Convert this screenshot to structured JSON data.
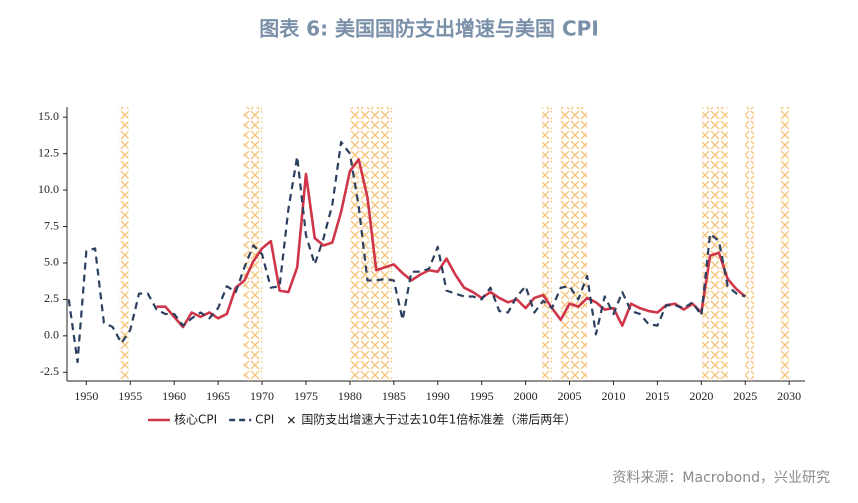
{
  "chart_data": {
    "type": "line",
    "title": "图表 6:    美国国防支出增速与美国 CPI",
    "source": "资料来源：Macrobond，兴业研究",
    "x": [
      1948,
      1949,
      1950,
      1951,
      1952,
      1953,
      1954,
      1955,
      1956,
      1957,
      1958,
      1959,
      1960,
      1961,
      1962,
      1963,
      1964,
      1965,
      1966,
      1967,
      1968,
      1969,
      1970,
      1971,
      1972,
      1973,
      1974,
      1975,
      1976,
      1977,
      1978,
      1979,
      1980,
      1981,
      1982,
      1983,
      1984,
      1985,
      1986,
      1987,
      1988,
      1989,
      1990,
      1991,
      1992,
      1993,
      1994,
      1995,
      1996,
      1997,
      1998,
      1999,
      2000,
      2001,
      2002,
      2003,
      2004,
      2005,
      2006,
      2007,
      2008,
      2009,
      2010,
      2011,
      2012,
      2013,
      2014,
      2015,
      2016,
      2017,
      2018,
      2019,
      2020,
      2021,
      2022,
      2023,
      2024,
      2025
    ],
    "series": [
      {
        "name": "核心CPI",
        "color": "#d0364a",
        "dash": false,
        "values": [
          null,
          null,
          null,
          null,
          null,
          null,
          null,
          null,
          null,
          null,
          2.0,
          2.0,
          1.3,
          0.6,
          1.6,
          1.3,
          1.6,
          1.2,
          1.5,
          3.3,
          3.8,
          5.1,
          6.0,
          6.5,
          3.1,
          3.0,
          4.7,
          11.1,
          6.7,
          6.2,
          6.4,
          8.5,
          11.3,
          12.1,
          9.5,
          4.5,
          4.7,
          4.9,
          4.3,
          3.8,
          4.2,
          4.5,
          4.4,
          5.3,
          4.2,
          3.3,
          3.0,
          2.6,
          3.0,
          2.6,
          2.3,
          2.5,
          1.9,
          2.6,
          2.8,
          1.9,
          1.1,
          2.2,
          2.0,
          2.6,
          2.3,
          1.8,
          1.9,
          0.7,
          2.2,
          1.9,
          1.7,
          1.6,
          2.1,
          2.2,
          1.8,
          2.2,
          1.6,
          5.5,
          5.7,
          3.9,
          3.2,
          2.7
        ]
      },
      {
        "name": "CPI",
        "color": "#2b3f5e",
        "dash": true,
        "values": [
          2.5,
          -1.8,
          5.8,
          6.0,
          0.9,
          0.6,
          -0.5,
          0.4,
          2.9,
          2.9,
          1.8,
          1.5,
          1.5,
          0.7,
          1.2,
          1.6,
          1.2,
          1.9,
          3.4,
          3.0,
          4.7,
          6.2,
          5.6,
          3.3,
          3.4,
          8.7,
          12.3,
          6.9,
          4.9,
          6.7,
          9.0,
          13.3,
          12.5,
          8.9,
          3.8,
          3.8,
          3.9,
          3.8,
          1.1,
          4.4,
          4.4,
          4.6,
          6.1,
          3.1,
          2.9,
          2.7,
          2.7,
          2.5,
          3.3,
          1.7,
          1.6,
          2.7,
          3.4,
          1.6,
          2.4,
          1.9,
          3.3,
          3.4,
          2.5,
          4.1,
          0.1,
          2.7,
          1.5,
          3.0,
          1.7,
          1.5,
          0.8,
          0.7,
          2.1,
          2.1,
          1.9,
          2.3,
          1.4,
          7.0,
          6.5,
          3.4,
          2.9,
          2.7
        ]
      }
    ],
    "bands": {
      "name": "国防支出增速大于过去10年1倍标准差（滞后两年）",
      "color": "#f6c57c",
      "ranges": [
        [
          1953.7,
          1954.8
        ],
        [
          1967.9,
          1970.0
        ],
        [
          1979.9,
          1984.8
        ],
        [
          2001.9,
          2003.0
        ],
        [
          2004.0,
          2007.0
        ],
        [
          2020.1,
          2023.0
        ],
        [
          2025.0,
          2026.0
        ],
        [
          2029.0,
          2030.0
        ]
      ]
    },
    "xlim": [
      1947.8,
      2031.8
    ],
    "xticks": [
      1950,
      1955,
      1960,
      1965,
      1970,
      1975,
      1980,
      1985,
      1990,
      1995,
      2000,
      2005,
      2010,
      2015,
      2020,
      2025,
      2030
    ],
    "ylim": [
      -3.1,
      15.7
    ],
    "yticks": [
      -2.5,
      {
        "value": 0,
        "label": "0.0"
      },
      2.5,
      {
        "value": 5,
        "label": "5.0"
      },
      7.5,
      {
        "value": 10,
        "label": "10.0"
      },
      12.5,
      {
        "value": 15,
        "label": "15.0"
      }
    ]
  }
}
